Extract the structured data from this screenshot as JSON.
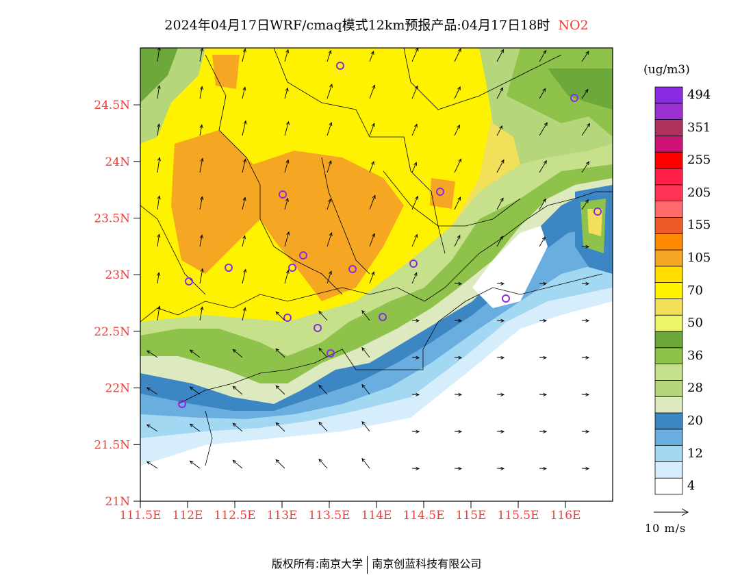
{
  "title": {
    "main": "2024年04月17日WRF/cmaq模式12km预报产品:04月17日18时",
    "species": "NO2"
  },
  "colorbar": {
    "unit": "(ug/m3)",
    "levels": [
      {
        "color": "#ffffff",
        "label": "4"
      },
      {
        "color": "#d6eefb",
        "label": ""
      },
      {
        "color": "#a3d8f2",
        "label": "12"
      },
      {
        "color": "#6aaee0",
        "label": ""
      },
      {
        "color": "#3d86c4",
        "label": "20"
      },
      {
        "color": "#dde9bf",
        "label": ""
      },
      {
        "color": "#b5d67a",
        "label": "28"
      },
      {
        "color": "#c7e08c",
        "label": ""
      },
      {
        "color": "#8fc24a",
        "label": "36"
      },
      {
        "color": "#6da83a",
        "label": ""
      },
      {
        "color": "#eef56a",
        "label": "50"
      },
      {
        "color": "#f2e05a",
        "label": ""
      },
      {
        "color": "#fff200",
        "label": "70"
      },
      {
        "color": "#ffde00",
        "label": ""
      },
      {
        "color": "#f5a623",
        "label": "105"
      },
      {
        "color": "#ff8c00",
        "label": ""
      },
      {
        "color": "#f05a28",
        "label": "155"
      },
      {
        "color": "#ff6a6a",
        "label": ""
      },
      {
        "color": "#ff3355",
        "label": "205"
      },
      {
        "color": "#ff1f4a",
        "label": ""
      },
      {
        "color": "#ff0000",
        "label": "255"
      },
      {
        "color": "#cc1177",
        "label": ""
      },
      {
        "color": "#b0305e",
        "label": "351"
      },
      {
        "color": "#9b30d0",
        "label": ""
      },
      {
        "color": "#8a2be2",
        "label": "494"
      }
    ]
  },
  "axes": {
    "lat_ticks": [
      "21N",
      "21.5N",
      "22N",
      "22.5N",
      "23N",
      "23.5N",
      "24N",
      "24.5N"
    ],
    "lon_ticks": [
      "111.5E",
      "112E",
      "112.5E",
      "113E",
      "113.5E",
      "114E",
      "114.5E",
      "115E",
      "115.5E",
      "116E"
    ],
    "tick_color": "#e8413c"
  },
  "wind_reference": {
    "label": "10 m/s"
  },
  "footer": {
    "left": "版权所有:南京大学",
    "right": "南京创蓝科技有限公司"
  }
}
